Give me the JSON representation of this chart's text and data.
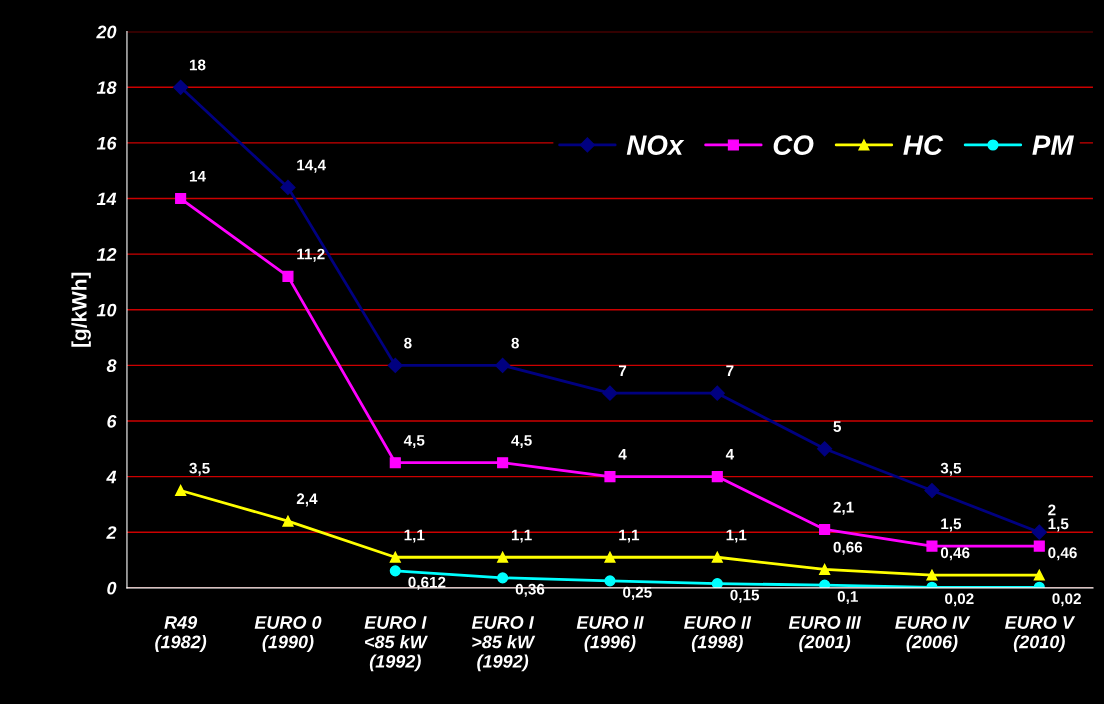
{
  "chart_data": {
    "type": "line",
    "ylabel": "[g/kWh]",
    "categories": [
      "R49\n(1982)",
      "EURO 0\n(1990)",
      "EURO I\n<85 kW\n(1992)",
      "EURO I\n>85 kW\n(1992)",
      "EURO II\n(1996)",
      "EURO II\n(1998)",
      "EURO III\n(2001)",
      "EURO IV\n(2006)",
      "EURO V\n(2010)"
    ],
    "series": [
      {
        "name": "NOx",
        "color": "#000080",
        "marker": "diamond",
        "values": [
          18,
          14.4,
          8,
          8,
          7,
          7,
          5,
          3.5,
          2
        ],
        "value_labels": [
          "18",
          "14,4",
          "8",
          "8",
          "7",
          "7",
          "5",
          "3,5",
          "2"
        ]
      },
      {
        "name": "CO",
        "color": "#ff00ff",
        "marker": "square",
        "values": [
          14,
          11.2,
          4.5,
          4.5,
          4,
          4,
          2.1,
          1.5,
          1.5
        ],
        "value_labels": [
          "14",
          "11,2",
          "4,5",
          "4,5",
          "4",
          "4",
          "2,1",
          "1,5",
          "1,5"
        ]
      },
      {
        "name": "HC",
        "color": "#ffff00",
        "marker": "triangle",
        "values": [
          3.5,
          2.4,
          1.1,
          1.1,
          1.1,
          1.1,
          0.66,
          0.46,
          0.46
        ],
        "value_labels": [
          "3,5",
          "2,4",
          "1,1",
          "1,1",
          "1,1",
          "1,1",
          "0,66",
          "0,46",
          "0,46"
        ]
      },
      {
        "name": "PM",
        "color": "#00ffff",
        "marker": "circle",
        "values": [
          null,
          null,
          0.612,
          0.36,
          0.25,
          0.15,
          0.1,
          0.02,
          0.02
        ],
        "value_labels": [
          null,
          null,
          "0,612",
          "0,36",
          "0,25",
          "0,15",
          "0,1",
          "0,02",
          "0,02"
        ]
      }
    ],
    "ylim": [
      0,
      20
    ],
    "yticks": [
      0,
      2,
      4,
      6,
      8,
      10,
      12,
      14,
      16,
      18,
      20
    ],
    "grid": "y",
    "legend": "top right",
    "line_style": "solid"
  }
}
